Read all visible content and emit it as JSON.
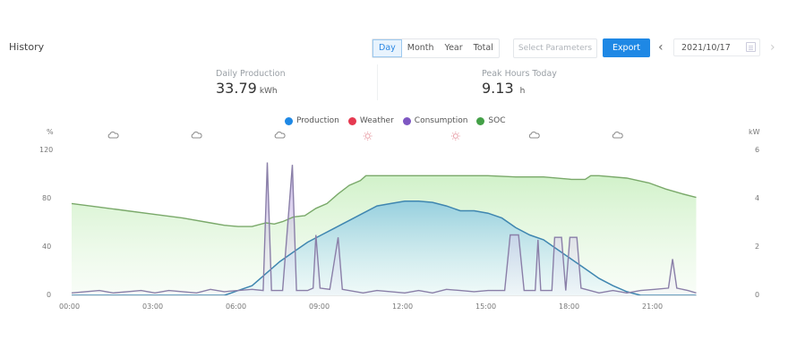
{
  "header": {
    "title": "History",
    "period_tabs": [
      {
        "label": "Day",
        "active": true
      },
      {
        "label": "Month",
        "active": false
      },
      {
        "label": "Year",
        "active": false
      },
      {
        "label": "Total",
        "active": false
      }
    ],
    "select_parameters_label": "Select Parameters",
    "export_label": "Export",
    "prev_icon": "chevron-left-icon",
    "next_icon": "chevron-right-icon",
    "date_value": "2021/10/17",
    "calendar_icon": "calendar-icon"
  },
  "stats": [
    {
      "label": "Daily Production",
      "value": "33.79",
      "unit": "kWh"
    },
    {
      "label": "Peak Hours Today",
      "value": "9.13",
      "unit": "h"
    }
  ],
  "colors": {
    "production": "#1e88e5",
    "weather": "#e53950",
    "consumption": "#7e57c2",
    "soc": "#43a047",
    "production_line": "#3f86b0",
    "consumption_line": "#8a7fa8",
    "soc_line": "#7aa96a"
  },
  "chart_data": {
    "type": "line",
    "title": "",
    "legend": [
      {
        "name": "Production",
        "color": "#1e88e5"
      },
      {
        "name": "Weather",
        "color": "#e53950"
      },
      {
        "name": "Consumption",
        "color": "#7e57c2"
      },
      {
        "name": "SOC",
        "color": "#43a047"
      }
    ],
    "legend_position": "top",
    "grid": false,
    "xlabel": "",
    "x_ticks": [
      "00:00",
      "03:00",
      "06:00",
      "09:00",
      "12:00",
      "15:00",
      "18:00",
      "21:00"
    ],
    "y_left": {
      "label": "%",
      "ticks": [
        0,
        40,
        80,
        120
      ],
      "range": [
        0,
        120
      ]
    },
    "y_right": {
      "label": "kW",
      "ticks": [
        0,
        2,
        4,
        6
      ],
      "range": [
        0,
        6
      ]
    },
    "weather_icons": [
      {
        "time": "01:30",
        "icon": "cloud"
      },
      {
        "time": "04:30",
        "icon": "cloud"
      },
      {
        "time": "07:30",
        "icon": "cloud"
      },
      {
        "time": "10:40",
        "icon": "sun"
      },
      {
        "time": "13:50",
        "icon": "sun"
      },
      {
        "time": "16:40",
        "icon": "cloud"
      },
      {
        "time": "19:40",
        "icon": "cloud"
      }
    ],
    "series": [
      {
        "name": "SOC",
        "axis": "left",
        "unit": "%",
        "points": [
          [
            0,
            76
          ],
          [
            1,
            73
          ],
          [
            2,
            70
          ],
          [
            3,
            67
          ],
          [
            4,
            64
          ],
          [
            5,
            60
          ],
          [
            5.5,
            58
          ],
          [
            6,
            57
          ],
          [
            6.5,
            57
          ],
          [
            7,
            60
          ],
          [
            7.3,
            59
          ],
          [
            7.6,
            61
          ],
          [
            8,
            65
          ],
          [
            8.4,
            66
          ],
          [
            8.8,
            72
          ],
          [
            9.2,
            76
          ],
          [
            9.6,
            84
          ],
          [
            10,
            91
          ],
          [
            10.4,
            95
          ],
          [
            10.6,
            99
          ],
          [
            11,
            99
          ],
          [
            12,
            99
          ],
          [
            13,
            99
          ],
          [
            14,
            99
          ],
          [
            15,
            99
          ],
          [
            16,
            98
          ],
          [
            17,
            98
          ],
          [
            18,
            96
          ],
          [
            18.5,
            96
          ],
          [
            18.7,
            99
          ],
          [
            19,
            99
          ],
          [
            20,
            97
          ],
          [
            20.8,
            93
          ],
          [
            21.4,
            88
          ],
          [
            22,
            84
          ],
          [
            22.5,
            81
          ]
        ]
      },
      {
        "name": "Production",
        "axis": "right",
        "unit": "kW",
        "points": [
          [
            0,
            0
          ],
          [
            5.5,
            0
          ],
          [
            6,
            0.2
          ],
          [
            6.5,
            0.4
          ],
          [
            7,
            0.9
          ],
          [
            7.5,
            1.4
          ],
          [
            8,
            1.8
          ],
          [
            8.5,
            2.2
          ],
          [
            9,
            2.5
          ],
          [
            9.5,
            2.8
          ],
          [
            10,
            3.1
          ],
          [
            10.5,
            3.4
          ],
          [
            11,
            3.7
          ],
          [
            11.5,
            3.8
          ],
          [
            12,
            3.9
          ],
          [
            12.5,
            3.9
          ],
          [
            13,
            3.85
          ],
          [
            13.5,
            3.7
          ],
          [
            14,
            3.5
          ],
          [
            14.5,
            3.5
          ],
          [
            15,
            3.4
          ],
          [
            15.5,
            3.2
          ],
          [
            16,
            2.8
          ],
          [
            16.5,
            2.5
          ],
          [
            17,
            2.3
          ],
          [
            17.5,
            1.9
          ],
          [
            18,
            1.5
          ],
          [
            18.5,
            1.1
          ],
          [
            19,
            0.7
          ],
          [
            19.5,
            0.4
          ],
          [
            20,
            0.15
          ],
          [
            20.5,
            0
          ],
          [
            22.5,
            0
          ]
        ]
      },
      {
        "name": "Consumption",
        "axis": "right",
        "unit": "kW",
        "points": [
          [
            0,
            0.1
          ],
          [
            0.5,
            0.15
          ],
          [
            1,
            0.2
          ],
          [
            1.5,
            0.1
          ],
          [
            2,
            0.15
          ],
          [
            2.5,
            0.2
          ],
          [
            3,
            0.1
          ],
          [
            3.5,
            0.2
          ],
          [
            4,
            0.15
          ],
          [
            4.5,
            0.1
          ],
          [
            5,
            0.25
          ],
          [
            5.5,
            0.15
          ],
          [
            6,
            0.2
          ],
          [
            6.5,
            0.25
          ],
          [
            6.9,
            0.2
          ],
          [
            7.05,
            5.5
          ],
          [
            7.2,
            0.2
          ],
          [
            7.6,
            0.2
          ],
          [
            7.95,
            5.4
          ],
          [
            8.1,
            0.2
          ],
          [
            8.5,
            0.2
          ],
          [
            8.7,
            0.3
          ],
          [
            8.8,
            2.5
          ],
          [
            8.95,
            0.3
          ],
          [
            9.3,
            0.25
          ],
          [
            9.6,
            2.4
          ],
          [
            9.75,
            0.25
          ],
          [
            10.5,
            0.1
          ],
          [
            11,
            0.2
          ],
          [
            12,
            0.1
          ],
          [
            12.5,
            0.2
          ],
          [
            13,
            0.1
          ],
          [
            13.5,
            0.25
          ],
          [
            14,
            0.2
          ],
          [
            14.5,
            0.15
          ],
          [
            15,
            0.2
          ],
          [
            15.6,
            0.2
          ],
          [
            15.8,
            2.5
          ],
          [
            16.1,
            2.5
          ],
          [
            16.3,
            0.2
          ],
          [
            16.7,
            0.2
          ],
          [
            16.8,
            2.3
          ],
          [
            16.9,
            0.2
          ],
          [
            17.3,
            0.2
          ],
          [
            17.4,
            2.4
          ],
          [
            17.65,
            2.4
          ],
          [
            17.8,
            0.2
          ],
          [
            17.95,
            2.4
          ],
          [
            18.2,
            2.4
          ],
          [
            18.35,
            0.3
          ],
          [
            19,
            0.1
          ],
          [
            19.5,
            0.2
          ],
          [
            20,
            0.1
          ],
          [
            20.5,
            0.2
          ],
          [
            21,
            0.25
          ],
          [
            21.5,
            0.3
          ],
          [
            21.65,
            1.5
          ],
          [
            21.8,
            0.3
          ],
          [
            22.2,
            0.2
          ],
          [
            22.5,
            0.1
          ]
        ]
      }
    ]
  }
}
